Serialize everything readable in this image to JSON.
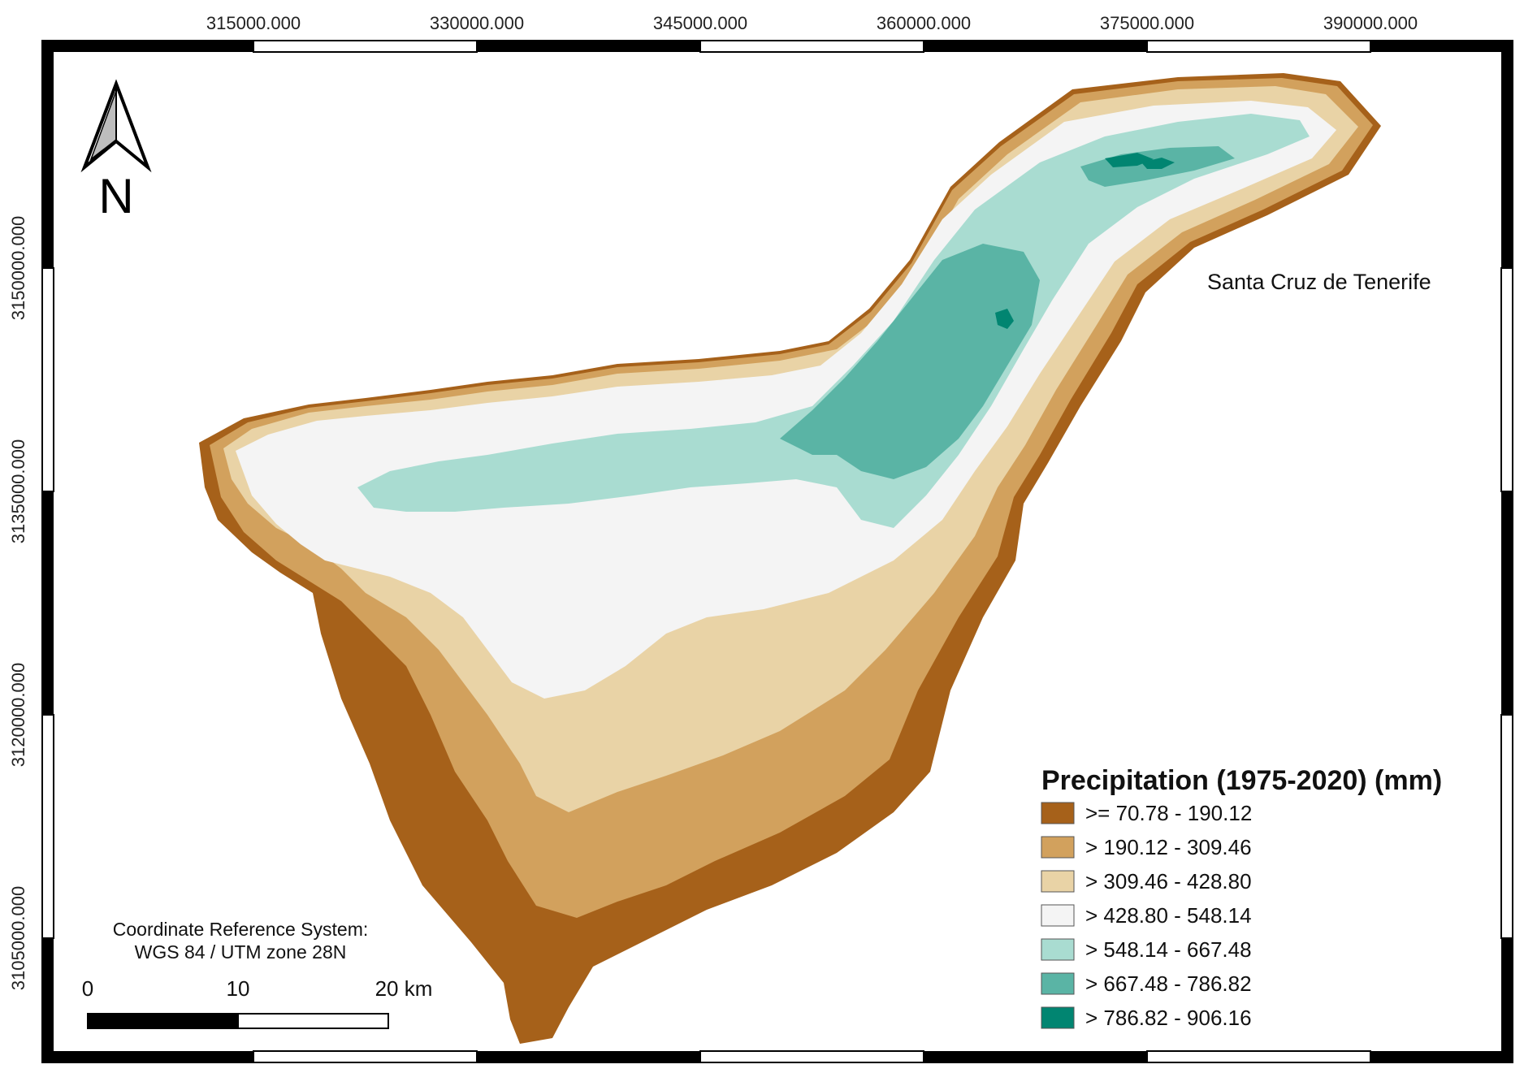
{
  "axes": {
    "x_ticks": [
      "315000.000",
      "330000.000",
      "345000.000",
      "360000.000",
      "375000.000",
      "390000.000"
    ],
    "y_ticks": [
      "3150000.000",
      "3135000.000",
      "3120000.000",
      "3105000.000"
    ]
  },
  "north_arrow": {
    "letter": "N",
    "icon": "north-arrow-icon"
  },
  "place_label": "Santa Cruz de Tenerife",
  "crs": {
    "line1": "Coordinate Reference System:",
    "line2": "WGS 84 / UTM zone 28N"
  },
  "scale_bar": {
    "labels": [
      "0",
      "10",
      "20 km"
    ]
  },
  "legend": {
    "title": "Precipitation (1975-2020) (mm)",
    "classes": [
      {
        "label": ">= 70.78 - 190.12",
        "color": "#a6611a"
      },
      {
        "label": "> 190.12 - 309.46",
        "color": "#d2a15d"
      },
      {
        "label": "> 309.46 - 428.80",
        "color": "#e9d3a6"
      },
      {
        "label": "> 428.80 - 548.14",
        "color": "#f4f4f4"
      },
      {
        "label": "> 548.14 - 667.48",
        "color": "#a9dcd1"
      },
      {
        "label": "> 667.48 - 786.82",
        "color": "#5ab4a5"
      },
      {
        "label": "> 786.82 - 906.16",
        "color": "#018571"
      }
    ]
  }
}
